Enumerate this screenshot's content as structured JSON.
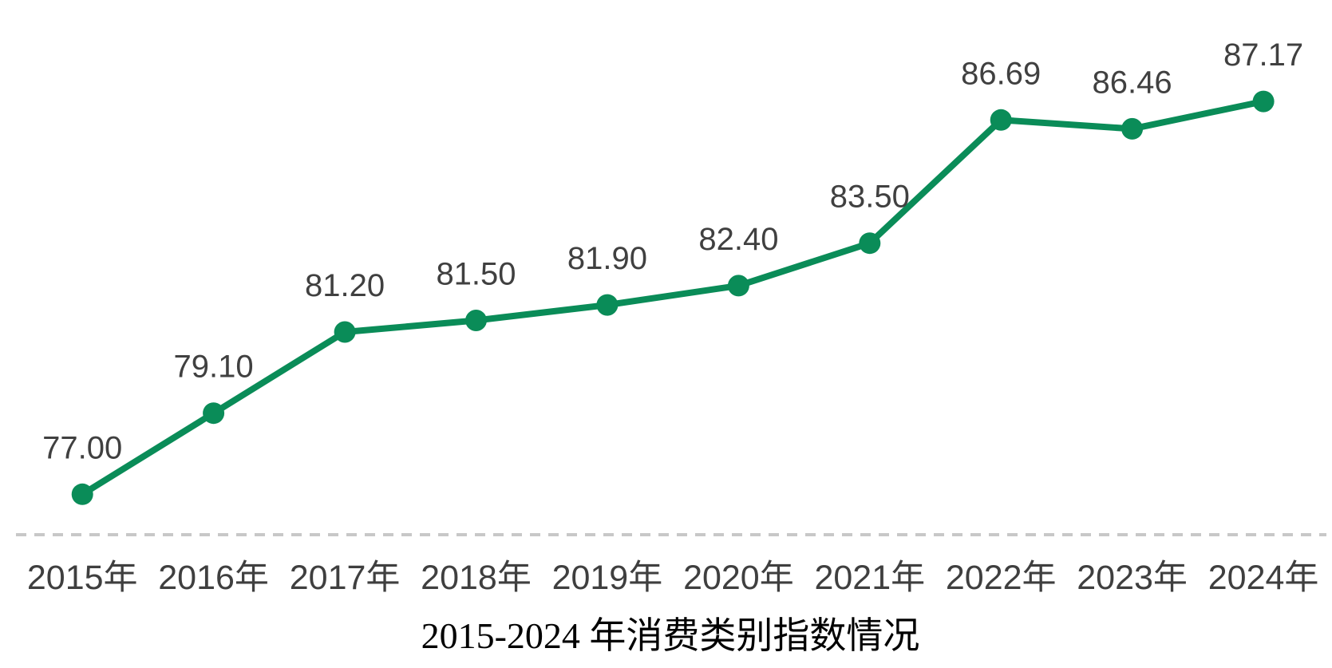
{
  "chart_data": {
    "type": "line",
    "title": "2015-2024 年消费类别指数情况",
    "categories": [
      "2015年",
      "2016年",
      "2017年",
      "2018年",
      "2019年",
      "2020年",
      "2021年",
      "2022年",
      "2023年",
      "2024年"
    ],
    "series": [
      {
        "name": "",
        "values": [
          77.0,
          79.1,
          81.2,
          81.5,
          81.9,
          82.4,
          83.5,
          86.69,
          86.46,
          87.17
        ]
      }
    ],
    "point_labels": [
      "77.00",
      "79.10",
      "81.20",
      "81.50",
      "81.90",
      "82.40",
      "83.50",
      "86.69",
      "86.46",
      "87.17"
    ],
    "xlabel": "",
    "ylabel": "",
    "ylim_estimate": [
      76,
      89
    ],
    "grid": false,
    "legend": false,
    "x_axis_line_style": "dashed",
    "colors": {
      "line": "#0a8c58",
      "marker": "#0a8c58",
      "data_label": "#404040",
      "axis_label": "#3f3f3f",
      "axis_line": "#c8c8c8",
      "title": "#000000"
    }
  }
}
